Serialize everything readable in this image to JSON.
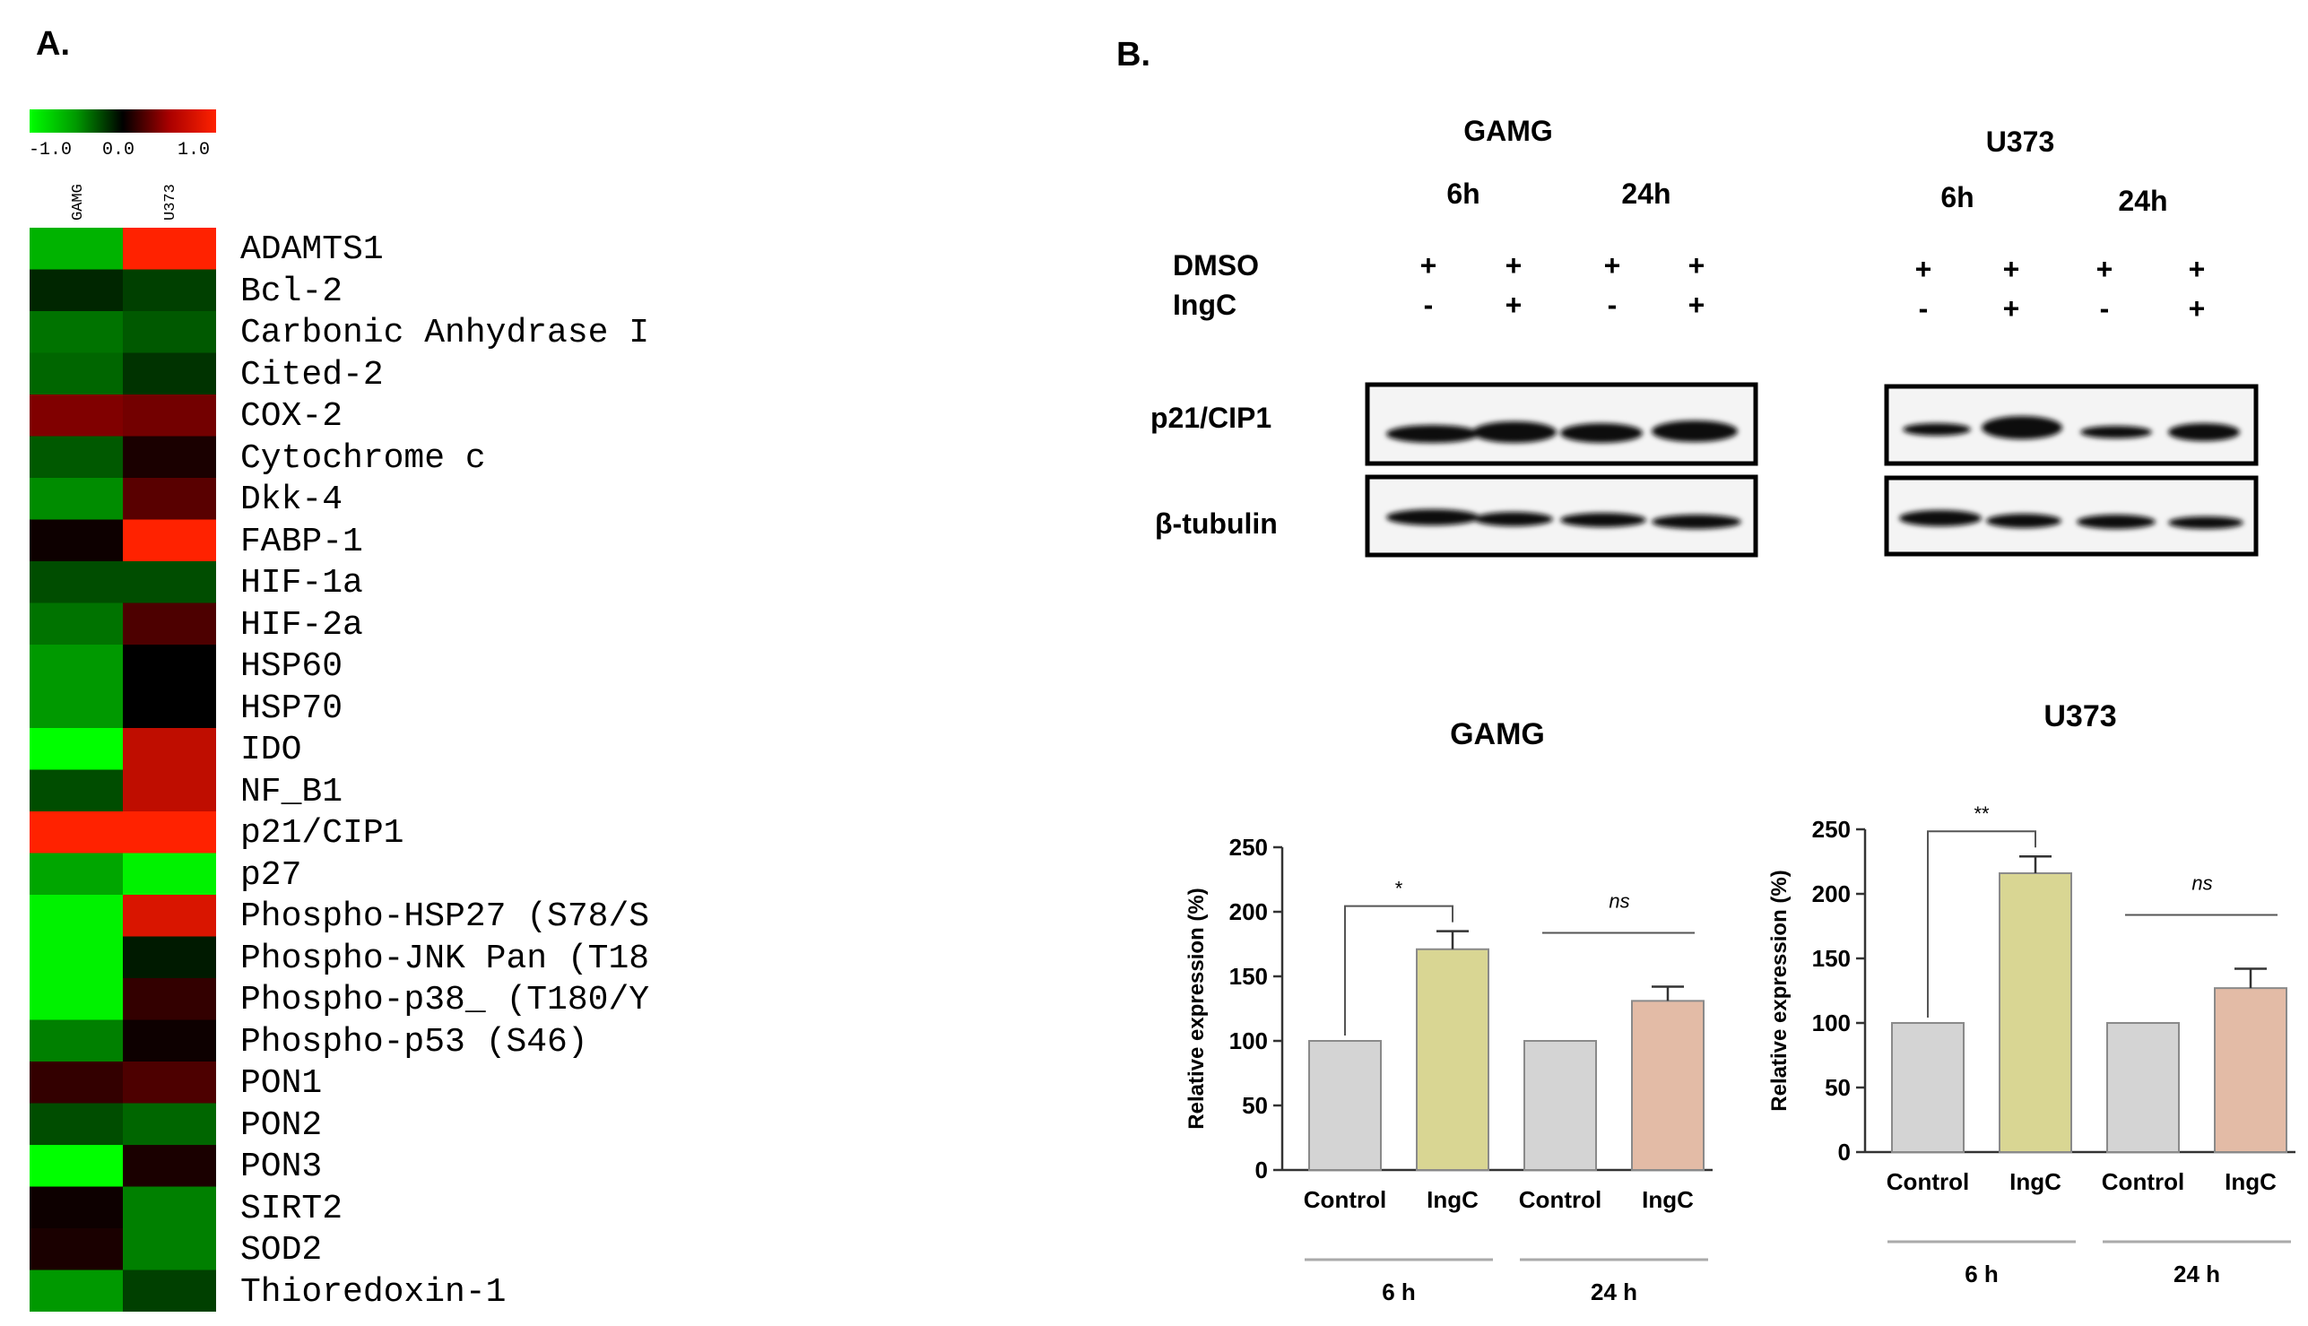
{
  "panel_a": {
    "label": "A.",
    "scale": {
      "min_label": "-1.0",
      "mid_label": "0.0",
      "max_label": "1.0"
    },
    "column_labels": [
      "GAMG",
      "U373"
    ],
    "genes": [
      "ADAMTS1",
      "Bcl-2",
      "Carbonic Anhydrase I",
      "Cited-2",
      "COX-2",
      "Cytochrome c",
      "Dkk-4",
      "FABP-1",
      "HIF-1a",
      "HIF-2a",
      "HSP60",
      "HSP70",
      "IDO",
      "NF_B1",
      "p21/CIP1",
      "p27",
      "Phospho-HSP27 (S78/S",
      "Phospho-JNK Pan (T18",
      "Phospho-p38_ (T180/Y",
      "Phospho-p53 (S46)",
      "PON1",
      "PON2",
      "PON3",
      "SIRT2",
      "SOD2",
      "Thioredoxin-1"
    ]
  },
  "panel_b": {
    "label": "B.",
    "western": {
      "cell_lines": [
        "GAMG",
        "U373"
      ],
      "timepoints": [
        "6h",
        "24h"
      ],
      "row_labels": [
        "DMSO",
        "IngC"
      ],
      "dmso_signs": [
        "+",
        "+",
        "+",
        "+"
      ],
      "ingc_signs": [
        "-",
        "+",
        "-",
        "+"
      ],
      "blot_labels": [
        "p21/CIP1",
        "β-tubulin"
      ]
    },
    "charts": {
      "ylabel": "Relative expression (%)",
      "groups": [
        "6 h",
        "24 h"
      ],
      "sig_labels": {
        "gamg_6h": "*",
        "gamg_24h": "ns",
        "u373_6h": "**",
        "u373_24h": "ns"
      }
    },
    "colors": {
      "control": "#d4d4d4",
      "ingc_6h": "#d9d693",
      "ingc_24h": "#e3bba6"
    }
  },
  "chart_data": [
    {
      "type": "heatmap",
      "x": [
        "GAMG",
        "U373"
      ],
      "y": [
        "ADAMTS1",
        "Bcl-2",
        "Carbonic Anhydrase I",
        "Cited-2",
        "COX-2",
        "Cytochrome c",
        "Dkk-4",
        "FABP-1",
        "HIF-1a",
        "HIF-2a",
        "HSP60",
        "HSP70",
        "IDO",
        "NF_B1",
        "p21/CIP1",
        "p27",
        "Phospho-HSP27 (S78/S",
        "Phospho-JNK Pan (T18",
        "Phospho-p38_ (T180/Y",
        "Phospho-p53 (S46)",
        "PON1",
        "PON2",
        "PON3",
        "SIRT2",
        "SOD2",
        "Thioredoxin-1"
      ],
      "values": [
        [
          -0.7,
          1.0
        ],
        [
          -0.15,
          -0.25
        ],
        [
          -0.45,
          -0.35
        ],
        [
          -0.4,
          -0.2
        ],
        [
          0.5,
          0.45
        ],
        [
          -0.35,
          0.1
        ],
        [
          -0.55,
          0.35
        ],
        [
          0.05,
          1.0
        ],
        [
          -0.3,
          -0.3
        ],
        [
          -0.45,
          0.3
        ],
        [
          -0.6,
          0.0
        ],
        [
          -0.6,
          0.0
        ],
        [
          -1.0,
          0.75
        ],
        [
          -0.3,
          0.75
        ],
        [
          1.0,
          1.0
        ],
        [
          -0.65,
          -0.95
        ],
        [
          -0.95,
          0.85
        ],
        [
          -0.95,
          -0.1
        ],
        [
          -0.95,
          0.2
        ],
        [
          -0.5,
          0.05
        ],
        [
          0.2,
          0.3
        ],
        [
          -0.3,
          -0.4
        ],
        [
          -1.0,
          0.1
        ],
        [
          0.05,
          -0.5
        ],
        [
          0.1,
          -0.5
        ],
        [
          -0.6,
          -0.25
        ]
      ],
      "zlim": [
        -1.0,
        1.0
      ]
    },
    {
      "type": "bar",
      "title": "GAMG",
      "categories": [
        "Control",
        "IngC",
        "Control",
        "IngC"
      ],
      "values": [
        100,
        171,
        100,
        131
      ],
      "errors": [
        0,
        14,
        0,
        11
      ],
      "ylabel": "Relative expression (%)",
      "ylim": [
        0,
        250
      ],
      "yticks": [
        0,
        50,
        100,
        150,
        200,
        250
      ],
      "groups": [
        "6 h",
        "24 h"
      ]
    },
    {
      "type": "bar",
      "title": "U373",
      "categories": [
        "Control",
        "IngC",
        "Control",
        "IngC"
      ],
      "values": [
        100,
        216,
        100,
        127
      ],
      "errors": [
        0,
        13,
        0,
        15
      ],
      "ylabel": "Relative expression (%)",
      "ylim": [
        0,
        250
      ],
      "yticks": [
        0,
        50,
        100,
        150,
        200,
        250
      ],
      "groups": [
        "6 h",
        "24 h"
      ]
    }
  ]
}
